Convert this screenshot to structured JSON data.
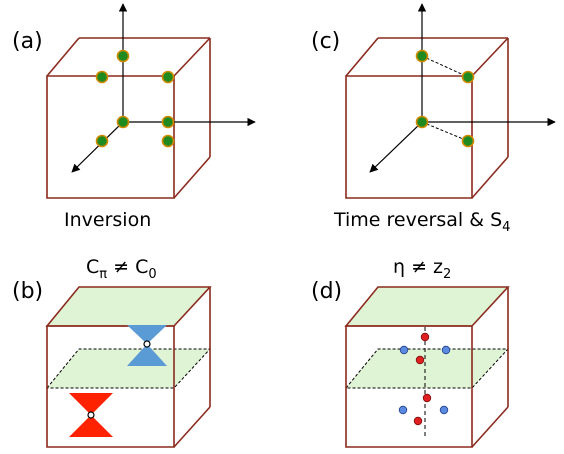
{
  "panels": {
    "a": {
      "label": "(a)",
      "caption": "Inversion"
    },
    "b": {
      "label": "(b)",
      "caption_main": "C",
      "caption_sub1": "π",
      "caption_rel": " ≠ C",
      "caption_sub2": "0"
    },
    "c": {
      "label": "(c)",
      "caption_main": "Time reversal & S",
      "caption_sub": "4"
    },
    "d": {
      "label": "(d)",
      "caption_main": "η ≠ z",
      "caption_sub": "2"
    }
  },
  "colors": {
    "cube_edge": "#8b2a1e",
    "dot_fill": "#1f8a1f",
    "dot_stroke": "#d08a00",
    "plane_fill": "#dff3d5",
    "cone_red": "#ff2200",
    "cone_blue": "#5b9bd5",
    "dot_red": "#e02020",
    "dot_blue": "#5b8be0"
  }
}
